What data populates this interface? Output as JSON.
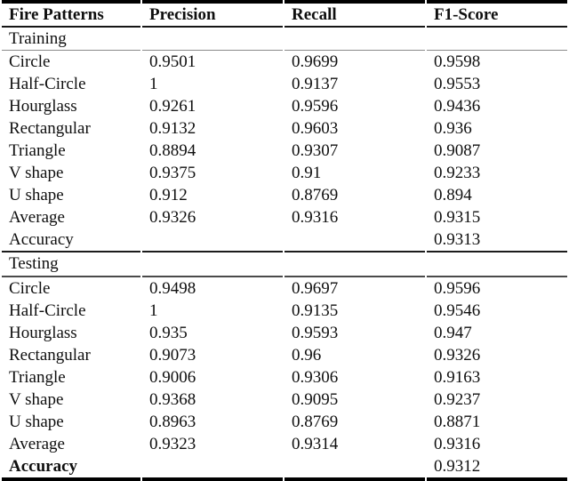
{
  "colors": {
    "text": "#0f0f0f",
    "rule_heavy": "#000000",
    "rule_light": "#8a8a8a",
    "background": "#ffffff"
  },
  "chart_data": {
    "type": "table",
    "columns": [
      "Fire Patterns",
      "Precision",
      "Recall",
      "F1-Score"
    ],
    "sections": [
      {
        "label": "Training",
        "rows": [
          {
            "cells": [
              "Circle",
              "0.9501",
              "0.9699",
              "0.9598"
            ]
          },
          {
            "cells": [
              "Half-Circle",
              "1",
              "0.9137",
              "0.9553"
            ]
          },
          {
            "cells": [
              "Hourglass",
              "0.9261",
              "0.9596",
              "0.9436"
            ]
          },
          {
            "cells": [
              "Rectangular",
              "0.9132",
              "0.9603",
              "0.936"
            ]
          },
          {
            "cells": [
              "Triangle",
              "0.8894",
              "0.9307",
              "0.9087"
            ]
          },
          {
            "cells": [
              "V shape",
              "0.9375",
              "0.91",
              "0.9233"
            ]
          },
          {
            "cells": [
              "U shape",
              "0.912",
              "0.8769",
              "0.894"
            ]
          },
          {
            "cells": [
              "Average",
              "0.9326",
              "0.9316",
              "0.9315"
            ]
          },
          {
            "cells": [
              "Accuracy",
              "",
              "",
              "0.9313"
            ]
          }
        ]
      },
      {
        "label": "Testing",
        "rows": [
          {
            "cells": [
              "Circle",
              "0.9498",
              "0.9697",
              "0.9596"
            ]
          },
          {
            "cells": [
              "Half-Circle",
              "1",
              "0.9135",
              "0.9546"
            ]
          },
          {
            "cells": [
              "Hourglass",
              "0.935",
              "0.9593",
              "0.947"
            ]
          },
          {
            "cells": [
              "Rectangular",
              "0.9073",
              "0.96",
              "0.9326"
            ]
          },
          {
            "cells": [
              "Triangle",
              "0.9006",
              "0.9306",
              "0.9163"
            ]
          },
          {
            "cells": [
              "V shape",
              "0.9368",
              "0.9095",
              "0.9237"
            ]
          },
          {
            "cells": [
              "U shape",
              "0.8963",
              "0.8769",
              "0.8871"
            ]
          },
          {
            "cells": [
              "Average",
              "0.9323",
              "0.9314",
              "0.9316"
            ]
          },
          {
            "cells": [
              "Accuracy",
              "",
              "",
              "0.9312"
            ],
            "bold_label": true
          }
        ]
      }
    ]
  }
}
